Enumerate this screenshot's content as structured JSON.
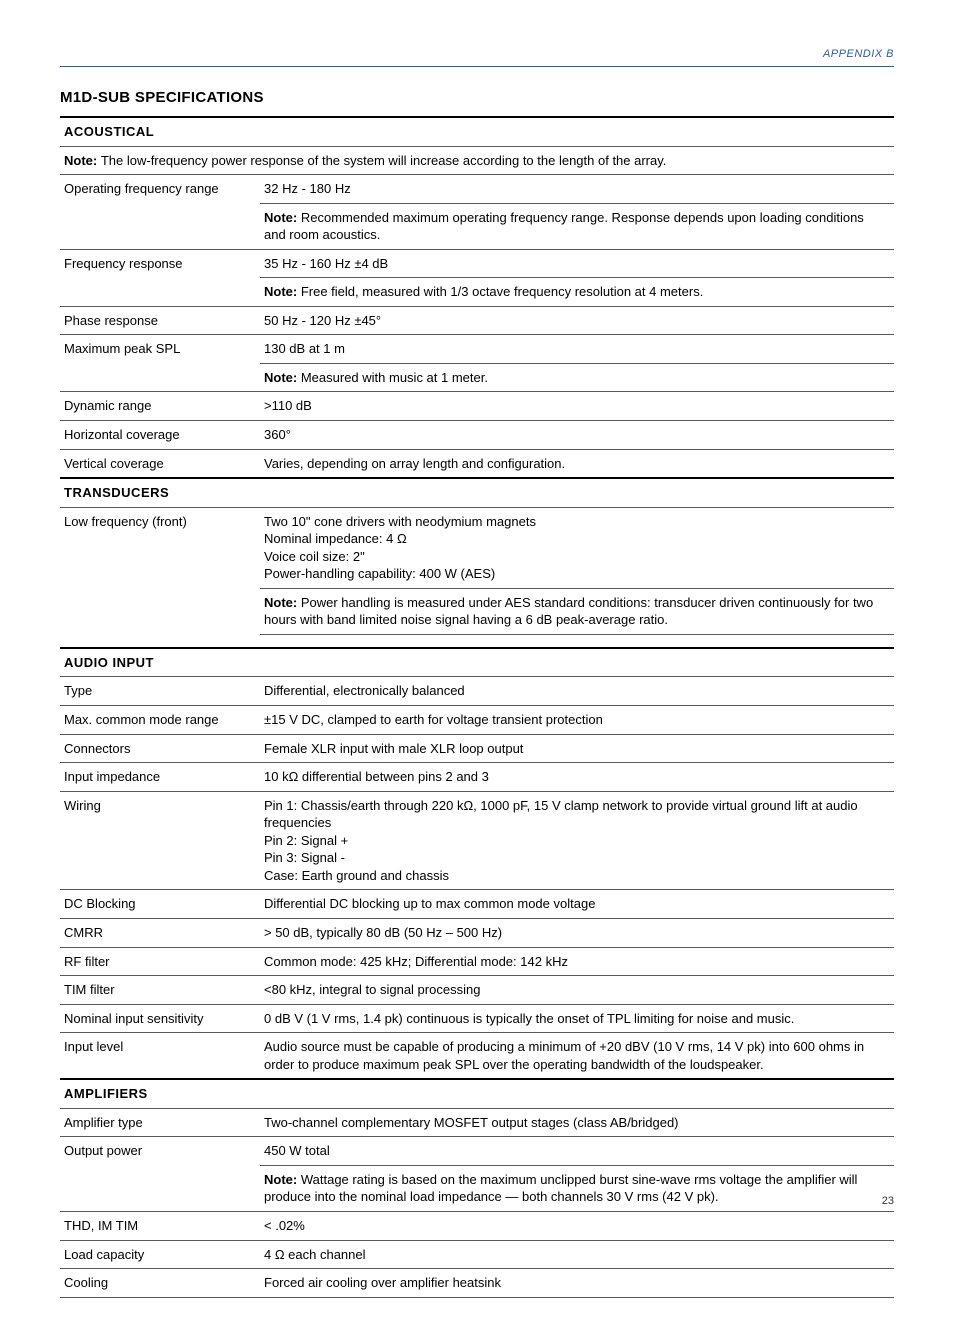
{
  "appendix": "APPENDIX B",
  "title": "M1D-SUB SPECIFICATIONS",
  "page_number": "23",
  "colors": {
    "accent": "#2b5fa6",
    "border": "#5a5a5a",
    "heavy_border": "#000000",
    "text": "#000000",
    "background": "#ffffff"
  },
  "table1": {
    "sec_acoustical": "ACOUSTICAL",
    "acoustical_note": "The low-frequency power response of the system will increase according to the length of the array.",
    "op_freq_label": "Operating frequency range",
    "op_freq_val": "32 Hz - 180 Hz",
    "op_freq_note": "Recommended maximum operating frequency range. Response depends upon loading conditions and room acoustics.",
    "freq_resp_label": "Frequency response",
    "freq_resp_val": "35 Hz - 160 Hz ±4 dB",
    "freq_resp_note": "Free field, measured with 1/3 octave frequency resolution at 4 meters.",
    "phase_label": "Phase response",
    "phase_val": "50 Hz - 120 Hz ±45°",
    "spl_label": "Maximum peak SPL",
    "spl_val": "130 dB at 1 m",
    "spl_note": "Measured with music at 1 meter.",
    "dyn_label": "Dynamic range",
    "dyn_val": ">110 dB",
    "hcov_label": "Horizontal coverage",
    "hcov_val": "360°",
    "vcov_label": "Vertical coverage",
    "vcov_val": "Varies, depending on array length and configuration.",
    "sec_transducers": "TRANSDUCERS",
    "lf_label": "Low frequency (front)",
    "lf_val": "Two 10\" cone drivers with neodymium magnets\nNominal impedance: 4 Ω\nVoice coil size: 2\"\nPower-handling capability: 400 W (AES)",
    "lf_note": "Power handling is measured under AES standard conditions: transducer driven continuously for two hours with band limited noise signal having a 6 dB peak-average ratio."
  },
  "table2": {
    "sec_audio": "AUDIO INPUT",
    "type_label": "Type",
    "type_val": "Differential, electronically balanced",
    "mcm_label": "Max. common mode range",
    "mcm_val": "±15 V DC, clamped to earth for voltage transient protection",
    "conn_label": "Connectors",
    "conn_val": "Female XLR input with male XLR loop output",
    "imp_label": "Input impedance",
    "imp_val": "10 kΩ differential between pins 2 and 3",
    "wiring_label": "Wiring",
    "wiring_val": "Pin 1: Chassis/earth through 220 kΩ, 1000 pF, 15 V clamp network to provide virtual ground lift at audio frequencies\nPin 2: Signal +\nPin 3: Signal -\nCase: Earth ground and chassis",
    "dcb_label": "DC Blocking",
    "dcb_val": "Differential DC blocking up to max common mode voltage",
    "cmrr_label": "CMRR",
    "cmrr_val": "> 50 dB, typically 80 dB (50 Hz – 500 Hz)",
    "rf_label": "RF filter",
    "rf_val": "Common mode: 425 kHz; Differential mode: 142 kHz",
    "tim_label": "TIM filter",
    "tim_val": "<80 kHz, integral to signal processing",
    "nis_label": "Nominal input sensitivity",
    "nis_val": "0 dB V (1 V rms, 1.4 pk) continuous is typically the onset of TPL limiting for noise and music.",
    "inlvl_label": "Input level",
    "inlvl_val": "Audio source must be capable of producing a minimum of +20 dBV (10 V rms, 14 V pk) into 600 ohms in order to produce maximum peak SPL over the operating bandwidth of the loudspeaker.",
    "sec_amp": "AMPLIFIERS",
    "amptype_label": "Amplifier type",
    "amptype_val": "Two-channel complementary MOSFET output stages (class AB/bridged)",
    "outpwr_label": "Output power",
    "outpwr_val": "450 W total",
    "outpwr_note": "Wattage rating is based on the maximum unclipped burst sine-wave rms voltage the amplifier will produce into the nominal load impedance — both channels 30 V rms (42 V pk).",
    "thd_label": "THD, IM TIM",
    "thd_val": "< .02%",
    "load_label": "Load capacity",
    "load_val": "4 Ω each channel",
    "cool_label": "Cooling",
    "cool_val": "Forced air cooling over amplifier heatsink"
  },
  "note_word": "Note: "
}
